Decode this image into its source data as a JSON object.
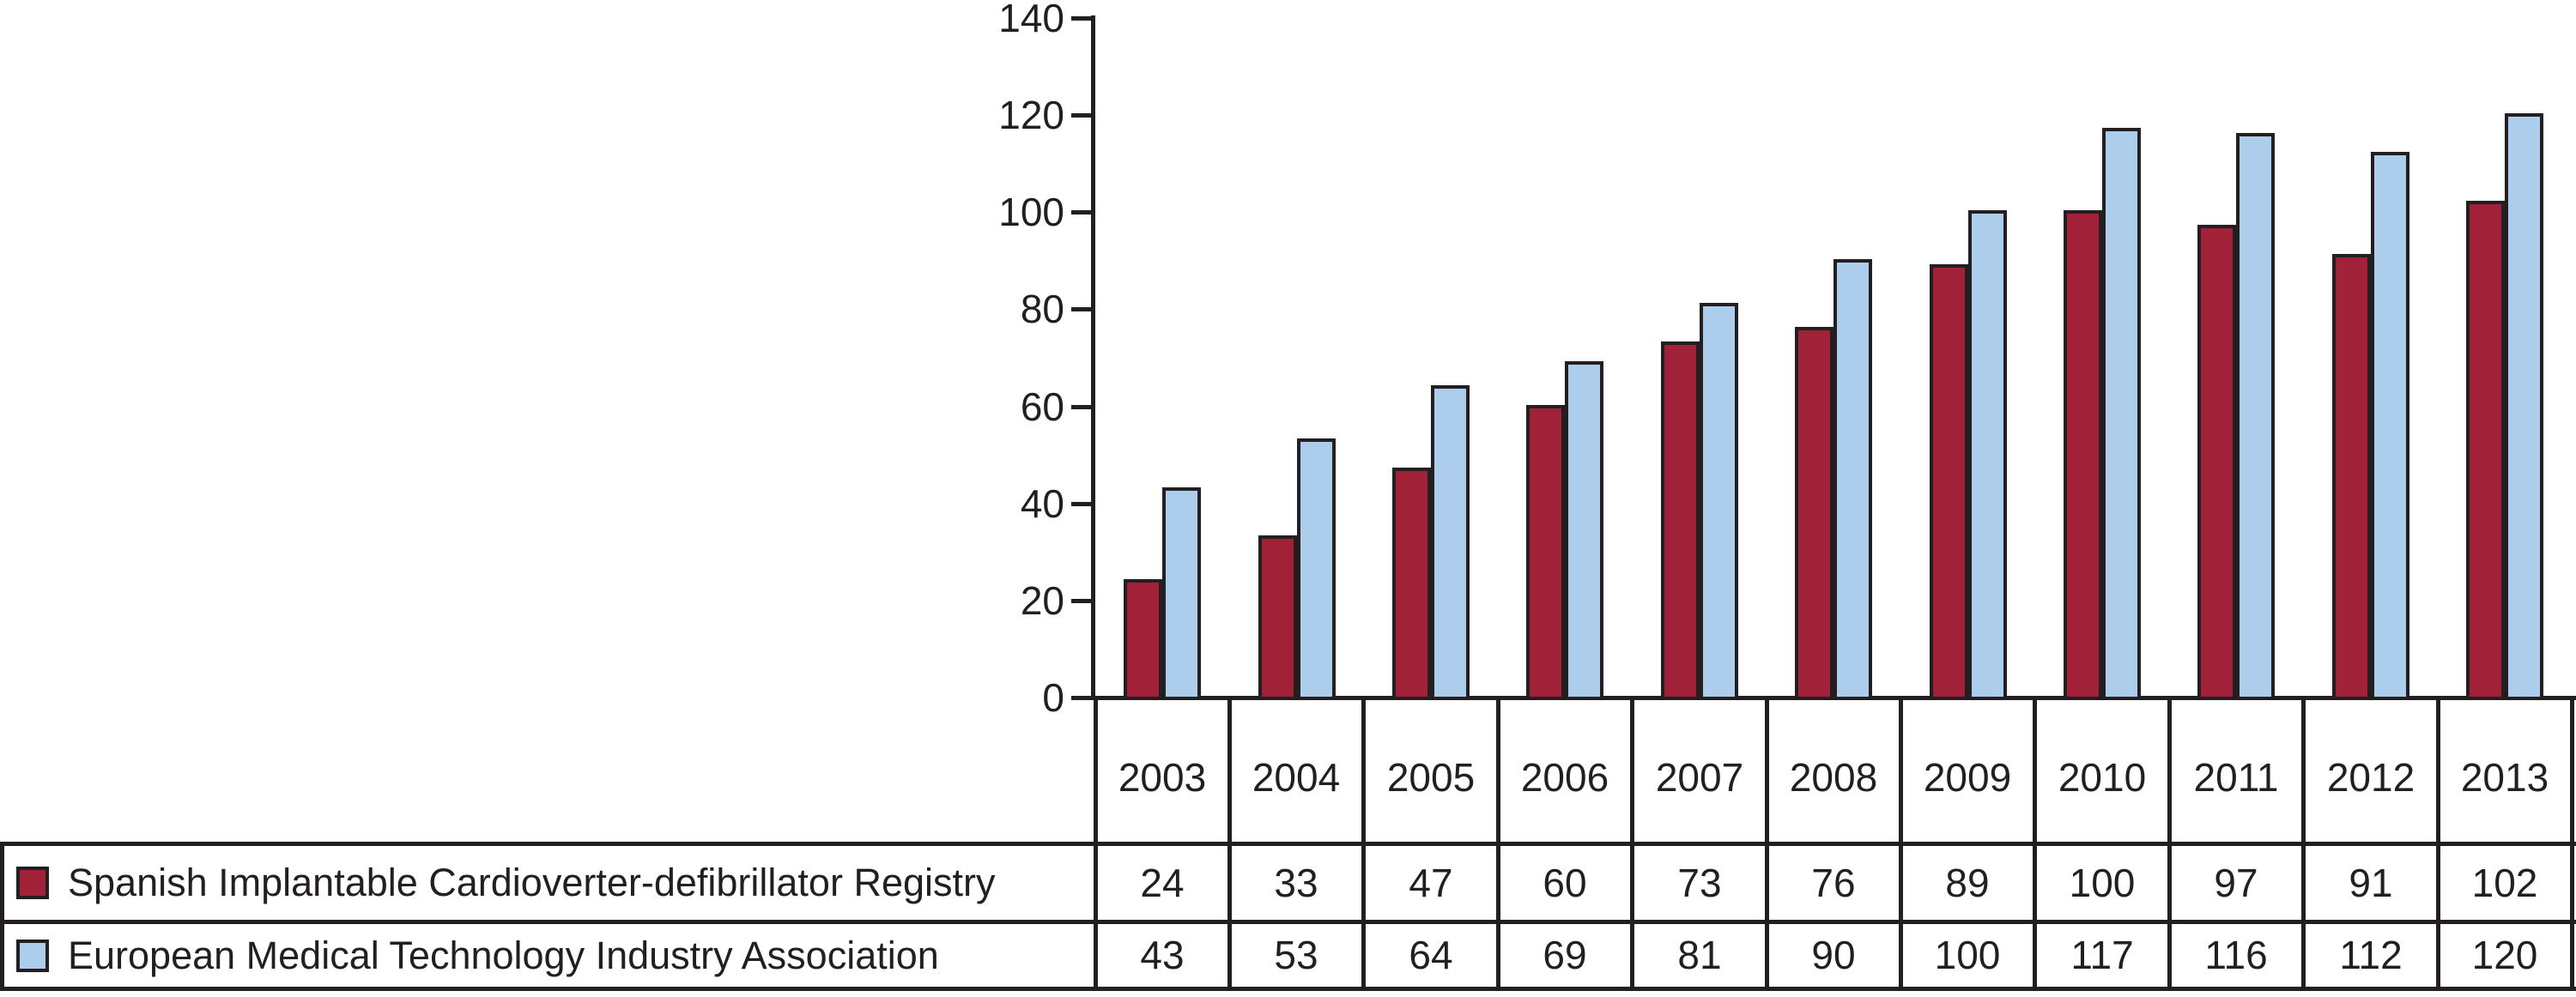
{
  "chart_data": {
    "type": "bar",
    "title": "",
    "xlabel": "",
    "ylabel": "",
    "categories": [
      "2003",
      "2004",
      "2005",
      "2006",
      "2007",
      "2008",
      "2009",
      "2010",
      "2011",
      "2012",
      "2013"
    ],
    "series": [
      {
        "name": "Spanish Implantable Cardioverter-defibrillator Registry",
        "color": "#A12138",
        "values": [
          24,
          33,
          47,
          60,
          73,
          76,
          89,
          100,
          97,
          91,
          102
        ]
      },
      {
        "name": "European Medical Technology Industry Association",
        "color": "#ACCDEC",
        "values": [
          43,
          53,
          64,
          69,
          81,
          90,
          100,
          117,
          116,
          112,
          120
        ]
      }
    ],
    "ylim": [
      0,
      140
    ],
    "yticks": [
      0,
      20,
      40,
      60,
      80,
      100,
      120,
      140
    ],
    "grid": false,
    "legend_position": "bottom-table",
    "axis_color": "#231F20",
    "bar_border_color": "#231F20",
    "background_color": "#FFFFFF"
  }
}
